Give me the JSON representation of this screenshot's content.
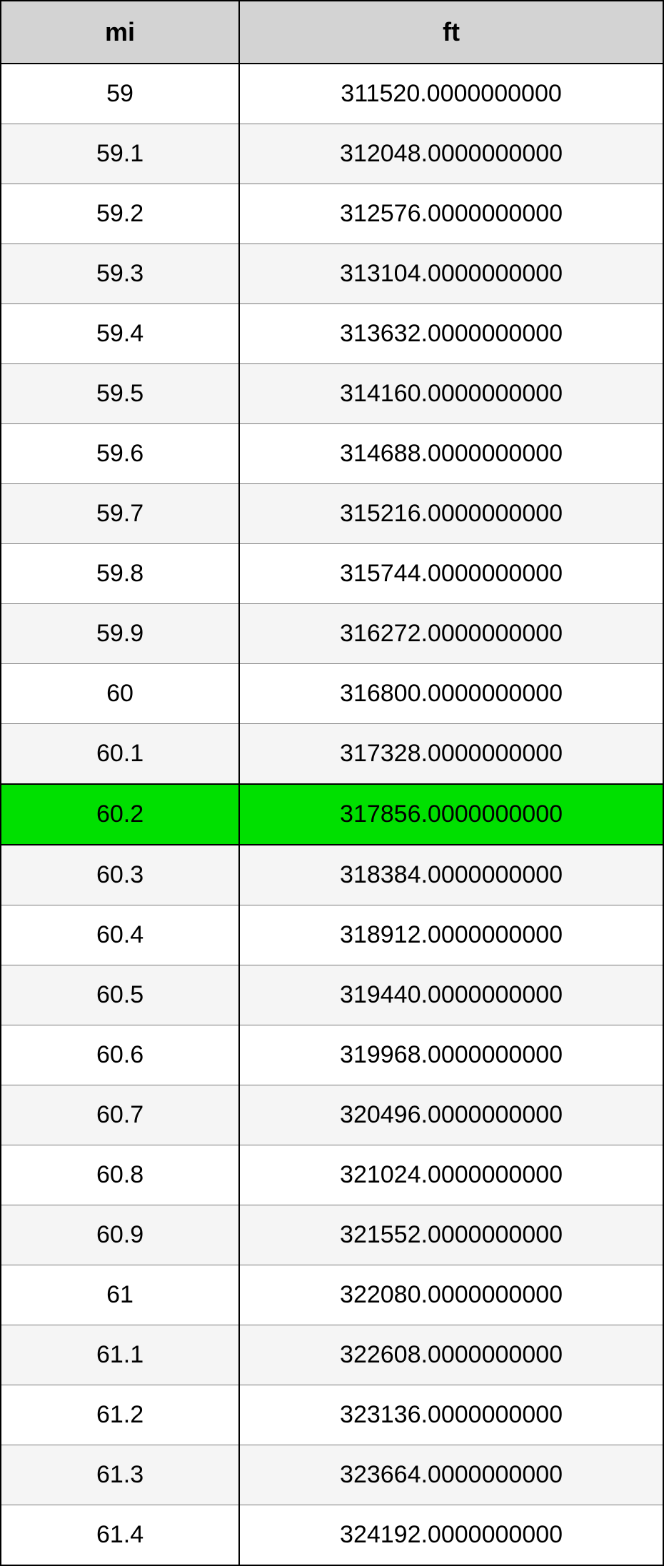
{
  "table": {
    "type": "table",
    "columns": [
      {
        "header": "mi",
        "width_pct": 36,
        "align": "center"
      },
      {
        "header": "ft",
        "width_pct": 64,
        "align": "center"
      }
    ],
    "header_background": "#d3d3d3",
    "header_border_color": "#000000",
    "header_fontsize": 36,
    "header_fontweight": "bold",
    "cell_fontsize": 34,
    "row_border_color": "#7a7a7a",
    "outer_border_color": "#000000",
    "odd_row_background": "#ffffff",
    "even_row_background": "#f5f5f5",
    "highlight_background": "#00e000",
    "highlighted_row_index": 13,
    "rows": [
      {
        "mi": "59",
        "ft": "311520.0000000000"
      },
      {
        "mi": "59.1",
        "ft": "312048.0000000000"
      },
      {
        "mi": "59.2",
        "ft": "312576.0000000000"
      },
      {
        "mi": "59.3",
        "ft": "313104.0000000000"
      },
      {
        "mi": "59.4",
        "ft": "313632.0000000000"
      },
      {
        "mi": "59.5",
        "ft": "314160.0000000000"
      },
      {
        "mi": "59.6",
        "ft": "314688.0000000000"
      },
      {
        "mi": "59.7",
        "ft": "315216.0000000000"
      },
      {
        "mi": "59.8",
        "ft": "315744.0000000000"
      },
      {
        "mi": "59.9",
        "ft": "316272.0000000000"
      },
      {
        "mi": "60",
        "ft": "316800.0000000000"
      },
      {
        "mi": "60.1",
        "ft": "317328.0000000000"
      },
      {
        "mi": "60.2",
        "ft": "317856.0000000000"
      },
      {
        "mi": "60.3",
        "ft": "318384.0000000000"
      },
      {
        "mi": "60.4",
        "ft": "318912.0000000000"
      },
      {
        "mi": "60.5",
        "ft": "319440.0000000000"
      },
      {
        "mi": "60.6",
        "ft": "319968.0000000000"
      },
      {
        "mi": "60.7",
        "ft": "320496.0000000000"
      },
      {
        "mi": "60.8",
        "ft": "321024.0000000000"
      },
      {
        "mi": "60.9",
        "ft": "321552.0000000000"
      },
      {
        "mi": "61",
        "ft": "322080.0000000000"
      },
      {
        "mi": "61.1",
        "ft": "322608.0000000000"
      },
      {
        "mi": "61.2",
        "ft": "323136.0000000000"
      },
      {
        "mi": "61.3",
        "ft": "323664.0000000000"
      },
      {
        "mi": "61.4",
        "ft": "324192.0000000000"
      }
    ]
  }
}
